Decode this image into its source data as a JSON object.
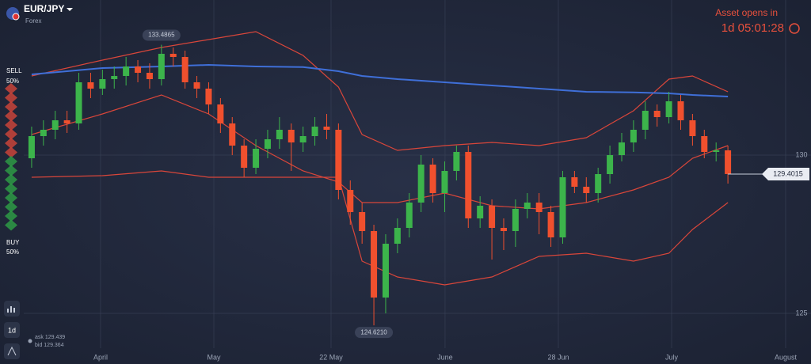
{
  "header": {
    "asset": "EUR/JPY",
    "market": "Forex",
    "status": "Asset opens in",
    "countdown": "1d 05:01:28"
  },
  "sentiment": {
    "sell_label": "SELL",
    "sell_percent": "50%",
    "buy_label": "BUY",
    "buy_percent": "50%"
  },
  "quotes": {
    "ask": "ask 129.439",
    "bid": "bid 129.364"
  },
  "toolbar": {
    "timeframe": "1d"
  },
  "chart_data": {
    "type": "candlestick",
    "x": [
      0,
      1,
      2,
      3,
      4,
      5,
      6,
      7,
      8,
      9,
      10,
      11,
      12,
      13,
      14,
      15,
      16,
      17,
      18,
      19,
      20,
      21,
      22,
      23,
      24,
      25,
      26,
      27,
      28,
      29,
      30,
      31,
      32,
      33,
      34,
      35,
      36,
      37,
      38,
      39,
      40,
      41,
      42,
      43,
      44,
      45,
      46,
      47,
      48,
      49,
      50,
      51,
      52,
      53,
      54,
      55,
      56,
      57,
      58,
      59
    ],
    "open": [
      129.9,
      130.6,
      130.8,
      131.1,
      131.0,
      132.3,
      132.1,
      132.4,
      132.5,
      132.8,
      132.6,
      132.4,
      133.2,
      133.1,
      132.3,
      132.1,
      131.6,
      131.0,
      130.3,
      129.6,
      130.2,
      130.5,
      130.8,
      130.4,
      130.6,
      130.9,
      130.8,
      128.9,
      128.2,
      127.6,
      125.5,
      127.2,
      127.7,
      128.5,
      129.7,
      128.8,
      129.5,
      130.1,
      128.0,
      128.4,
      127.7,
      127.6,
      128.3,
      128.5,
      128.2,
      127.4,
      129.3,
      129.0,
      128.8,
      129.4,
      130.0,
      130.4,
      130.8,
      131.4,
      131.2,
      131.7,
      131.1,
      130.6,
      130.1,
      130.15
    ],
    "high": [
      130.9,
      131.1,
      131.4,
      131.4,
      132.6,
      132.6,
      132.7,
      132.8,
      133.1,
      133.0,
      132.9,
      133.4865,
      133.4,
      133.3,
      132.5,
      132.3,
      131.8,
      131.2,
      130.5,
      130.5,
      130.8,
      131.2,
      131.0,
      130.9,
      131.2,
      131.3,
      131.0,
      129.2,
      128.5,
      127.8,
      127.5,
      128.0,
      128.8,
      130.0,
      129.9,
      129.8,
      130.3,
      130.3,
      128.7,
      128.6,
      128.0,
      128.6,
      128.8,
      128.8,
      128.4,
      129.5,
      129.5,
      129.3,
      129.6,
      130.3,
      130.7,
      131.1,
      131.7,
      131.6,
      132.0,
      131.9,
      131.3,
      130.8,
      130.4,
      130.3
    ],
    "low": [
      129.6,
      130.3,
      130.5,
      130.7,
      130.8,
      131.8,
      131.9,
      132.1,
      132.2,
      132.3,
      132.1,
      132.2,
      132.8,
      132.1,
      131.8,
      131.3,
      130.7,
      130.0,
      129.3,
      129.4,
      129.9,
      130.2,
      129.5,
      130.1,
      130.3,
      130.5,
      128.6,
      127.8,
      127.2,
      124.621,
      125.0,
      126.9,
      127.4,
      128.2,
      128.5,
      128.2,
      129.2,
      127.7,
      127.7,
      126.7,
      127.0,
      127.1,
      128.0,
      127.5,
      127.1,
      127.2,
      128.8,
      128.5,
      128.5,
      129.1,
      129.8,
      130.1,
      130.5,
      130.9,
      131.0,
      130.8,
      130.3,
      129.9,
      129.8,
      129.1
    ],
    "close": [
      130.6,
      130.8,
      131.1,
      131.0,
      132.3,
      132.1,
      132.4,
      132.5,
      132.8,
      132.6,
      132.4,
      133.2,
      133.1,
      132.3,
      132.1,
      131.6,
      131.0,
      130.3,
      129.6,
      130.2,
      130.5,
      130.8,
      130.4,
      130.6,
      130.9,
      130.8,
      128.9,
      128.2,
      127.6,
      125.5,
      127.2,
      127.7,
      128.5,
      129.7,
      128.8,
      129.5,
      130.1,
      128.0,
      128.4,
      127.7,
      127.6,
      128.3,
      128.5,
      128.2,
      127.4,
      129.3,
      129.0,
      128.8,
      129.4,
      130.0,
      130.4,
      130.8,
      131.4,
      131.2,
      131.7,
      131.1,
      130.6,
      130.1,
      130.15,
      129.4015
    ],
    "up_color": "#3cb44b",
    "down_color": "#f0502e",
    "high_label": "133.4865",
    "low_label": "124.6210",
    "indicator_x": [
      0,
      6,
      11,
      15,
      19,
      23,
      26,
      28,
      31,
      35,
      39,
      43,
      47,
      51,
      54,
      56,
      59
    ],
    "indicators": [
      {
        "color": "#d9463a",
        "values": [
          132.5,
          133.0,
          133.4,
          133.65,
          133.9,
          133.15,
          132.15,
          130.65,
          130.15,
          130.3,
          130.4,
          130.3,
          130.55,
          131.4,
          132.4,
          132.5,
          132.0
        ]
      },
      {
        "color": "#d9463a",
        "values": [
          130.65,
          131.3,
          131.9,
          131.3,
          130.3,
          129.5,
          129.15,
          128.5,
          128.5,
          128.8,
          128.4,
          128.3,
          128.5,
          128.9,
          129.3,
          129.9,
          130.3
        ]
      },
      {
        "color": "#d9463a",
        "values": [
          129.3,
          129.35,
          129.5,
          129.3,
          129.3,
          129.3,
          129.3,
          126.65,
          126.15,
          125.9,
          126.15,
          126.8,
          126.9,
          126.65,
          126.9,
          127.65,
          128.5
        ]
      },
      {
        "color": "#3f6fd8",
        "values": [
          132.55,
          132.75,
          132.8,
          132.85,
          132.8,
          132.78,
          132.65,
          132.5,
          132.4,
          132.3,
          132.2,
          132.1,
          132.0,
          131.98,
          131.95,
          131.9,
          131.85
        ]
      }
    ],
    "xlim": [
      -2.68,
      66.04
    ],
    "xticks": [
      {
        "value": 5.84,
        "label": "April"
      },
      {
        "value": 15.44,
        "label": "May"
      },
      {
        "value": 25.37,
        "label": "22 May"
      },
      {
        "value": 35.03,
        "label": "June"
      },
      {
        "value": 44.63,
        "label": "28 Jun"
      },
      {
        "value": 54.23,
        "label": "July"
      },
      {
        "value": 63.89,
        "label": "August"
      }
    ],
    "ylim": [
      123.9,
      134.9
    ],
    "yticks": [
      125,
      130
    ],
    "grid": true
  }
}
